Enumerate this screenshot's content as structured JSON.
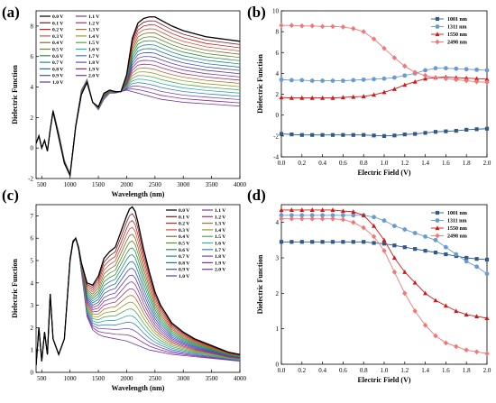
{
  "chart_data": [
    {
      "id": "a",
      "panel_label": "(a)",
      "type": "line",
      "xlabel": "Wavelength (nm)",
      "ylabel": "Dielectric Function",
      "xlim": [
        400,
        4000
      ],
      "ylim": [
        -2,
        9
      ],
      "xticks": [
        500,
        1000,
        1500,
        2000,
        2500,
        3000,
        3500,
        4000
      ],
      "yticks": [
        -2,
        0,
        2,
        4,
        6,
        8
      ],
      "legend": {
        "columns": [
          [
            "0.0 V",
            "0.1 V",
            "0.2 V",
            "0.3 V",
            "0.4 V",
            "0.5 V",
            "0.6 V",
            "0.7 V",
            "0.8 V",
            "0.9 V",
            "1.0 V"
          ],
          [
            "1.1 V",
            "1.2 V",
            "1.3 V",
            "1.4 V",
            "1.5 V",
            "1.6 V",
            "1.7 V",
            "1.8 V",
            "1.9 V",
            "2.0 V"
          ]
        ],
        "placement": "top-left"
      },
      "x": [
        400,
        450,
        500,
        550,
        600,
        650,
        700,
        800,
        900,
        1000,
        1100,
        1200,
        1300,
        1400,
        1500,
        1600,
        1700,
        1800,
        1900,
        2000,
        2100,
        2200,
        2300,
        2400,
        2500,
        2600,
        2700,
        2800,
        3000,
        3200,
        3400,
        3600,
        3800,
        4000
      ],
      "base": [
        0.3,
        0.8,
        0.0,
        0.5,
        -0.2,
        1.2,
        2.5,
        1.0,
        -0.8,
        -1.7,
        1.5,
        3.8,
        4.5,
        3.0,
        2.5,
        3.2,
        3.6,
        3.6,
        3.7,
        3.8,
        3.7,
        3.6,
        3.5,
        3.4,
        3.3,
        3.2,
        3.15,
        3.1,
        3.0,
        2.95,
        2.9,
        2.85,
        2.8,
        2.75
      ],
      "top": [
        0.3,
        0.8,
        0.0,
        0.5,
        -0.2,
        1.2,
        2.4,
        0.7,
        -1.0,
        -1.8,
        1.4,
        3.5,
        4.3,
        3.0,
        2.7,
        3.6,
        3.8,
        3.7,
        3.7,
        4.8,
        7.2,
        8.2,
        8.5,
        8.6,
        8.6,
        8.4,
        8.2,
        8.0,
        7.7,
        7.5,
        7.3,
        7.2,
        7.1,
        7.0
      ],
      "series_colors": [
        "#000000",
        "#7b1a1a",
        "#c81e1e",
        "#d4513a",
        "#7d6b2e",
        "#5c8a2a",
        "#2f8f3d",
        "#1f8f7a",
        "#1f6fa0",
        "#3a4fb0",
        "#5a3aa8",
        "#7c3aa0",
        "#a0336b",
        "#b46a2e",
        "#9a9a2a",
        "#4da84d",
        "#2ab0a0",
        "#3a80c0",
        "#6a4ac0",
        "#8a2a8a",
        "#6a3aa8"
      ]
    },
    {
      "id": "b",
      "panel_label": "(b)",
      "type": "line",
      "xlabel": "Electric Field (V)",
      "ylabel": "Dielectric Function",
      "xlim": [
        0,
        2.0
      ],
      "ylim": [
        -4,
        10
      ],
      "xticks": [
        0.0,
        0.2,
        0.4,
        0.6,
        0.8,
        1.0,
        1.2,
        1.4,
        1.6,
        1.8,
        2.0
      ],
      "yticks": [
        -4,
        -2,
        0,
        2,
        4,
        6,
        8,
        10
      ],
      "legend_placement": "top-right",
      "x": [
        0.0,
        0.1,
        0.2,
        0.3,
        0.4,
        0.5,
        0.6,
        0.7,
        0.8,
        0.9,
        1.0,
        1.1,
        1.2,
        1.3,
        1.4,
        1.5,
        1.6,
        1.7,
        1.8,
        1.9,
        2.0
      ],
      "series": [
        {
          "name": "1001 nm",
          "color": "#2f5a8a",
          "marker": "square",
          "values": [
            -1.8,
            -1.85,
            -1.9,
            -1.9,
            -1.9,
            -1.9,
            -1.9,
            -1.9,
            -1.9,
            -1.95,
            -2.0,
            -1.95,
            -1.85,
            -1.8,
            -1.7,
            -1.6,
            -1.55,
            -1.5,
            -1.4,
            -1.35,
            -1.3
          ]
        },
        {
          "name": "1311 nm",
          "color": "#6a9bd0",
          "marker": "circle",
          "values": [
            3.4,
            3.35,
            3.35,
            3.3,
            3.3,
            3.3,
            3.3,
            3.35,
            3.4,
            3.45,
            3.5,
            3.6,
            3.8,
            4.0,
            4.3,
            4.5,
            4.5,
            4.45,
            4.4,
            4.35,
            4.3
          ]
        },
        {
          "name": "1550 nm",
          "color": "#d01818",
          "marker": "triangle",
          "values": [
            1.7,
            1.65,
            1.65,
            1.65,
            1.65,
            1.65,
            1.7,
            1.75,
            1.8,
            1.95,
            2.2,
            2.5,
            2.9,
            3.2,
            3.5,
            3.6,
            3.65,
            3.6,
            3.55,
            3.5,
            3.45
          ]
        },
        {
          "name": "2498 nm",
          "color": "#f27777",
          "marker": "diamond",
          "values": [
            8.6,
            8.6,
            8.55,
            8.55,
            8.5,
            8.5,
            8.45,
            8.3,
            8.0,
            7.3,
            6.4,
            5.5,
            4.7,
            4.1,
            3.8,
            3.6,
            3.5,
            3.4,
            3.3,
            3.2,
            3.15
          ]
        }
      ]
    },
    {
      "id": "c",
      "panel_label": "(c)",
      "type": "line",
      "xlabel": "Wavelength (nm)",
      "ylabel": "Dielectric Function",
      "xlim": [
        400,
        4000
      ],
      "ylim": [
        0,
        7.5
      ],
      "xticks": [
        500,
        1000,
        1500,
        2000,
        2500,
        3000,
        3500,
        4000
      ],
      "yticks": [
        0,
        1,
        2,
        3,
        4,
        5,
        6,
        7
      ],
      "legend": {
        "columns": [
          [
            "0.0 V",
            "0.1 V",
            "0.2 V",
            "0.3 V",
            "0.4 V",
            "0.5 V",
            "0.6 V",
            "0.7 V",
            "0.8 V",
            "0.9 V",
            "1.0 V"
          ],
          [
            "1.1 V",
            "1.2 V",
            "1.3 V",
            "1.4 V",
            "1.5 V",
            "1.6 V",
            "1.7 V",
            "1.8 V",
            "1.9 V",
            "2.0 V"
          ]
        ],
        "placement": "top-right"
      },
      "x": [
        400,
        450,
        500,
        550,
        600,
        650,
        700,
        800,
        900,
        1000,
        1050,
        1100,
        1150,
        1200,
        1300,
        1400,
        1500,
        1600,
        1700,
        1800,
        1900,
        2000,
        2050,
        2100,
        2150,
        2200,
        2300,
        2400,
        2500,
        2600,
        2800,
        3000,
        3200,
        3400,
        3600,
        3800,
        4000
      ],
      "base": [
        0.3,
        2.0,
        0.5,
        1.8,
        0.8,
        3.5,
        1.5,
        0.8,
        1.5,
        5.1,
        5.9,
        6.0,
        5.5,
        4.5,
        2.5,
        1.9,
        1.7,
        1.6,
        1.55,
        1.5,
        1.45,
        1.4,
        1.35,
        1.3,
        1.25,
        1.2,
        1.1,
        1.0,
        0.95,
        0.9,
        0.8,
        0.75,
        0.7,
        0.65,
        0.6,
        0.55,
        0.5
      ],
      "top": [
        0.3,
        2.0,
        0.5,
        1.8,
        0.8,
        3.5,
        1.5,
        0.8,
        1.5,
        5.0,
        5.8,
        6.0,
        5.6,
        4.9,
        4.0,
        3.9,
        4.3,
        5.1,
        5.4,
        5.6,
        6.3,
        7.0,
        7.3,
        7.4,
        7.2,
        6.7,
        5.5,
        4.5,
        3.6,
        3.0,
        2.2,
        1.8,
        1.5,
        1.3,
        1.1,
        0.9,
        0.8
      ],
      "series_colors": [
        "#000000",
        "#7b1a1a",
        "#c81e1e",
        "#d4513a",
        "#7d6b2e",
        "#5c8a2a",
        "#2f8f3d",
        "#1f8f7a",
        "#1f6fa0",
        "#3a4fb0",
        "#5a3aa8",
        "#7c3aa0",
        "#a0336b",
        "#b46a2e",
        "#9a9a2a",
        "#4da84d",
        "#2ab0a0",
        "#3a80c0",
        "#6a4ac0",
        "#8a2a8a",
        "#6a3aa8"
      ]
    },
    {
      "id": "d",
      "panel_label": "(d)",
      "type": "line",
      "xlabel": "Electric Field (V)",
      "ylabel": "Dielectric Function",
      "xlim": [
        0,
        2.0
      ],
      "ylim": [
        0,
        4.5
      ],
      "xticks": [
        0.0,
        0.2,
        0.4,
        0.6,
        0.8,
        1.0,
        1.2,
        1.4,
        1.6,
        1.8,
        2.0
      ],
      "yticks": [
        0,
        1,
        2,
        3,
        4
      ],
      "legend_placement": "top-right",
      "x": [
        0.0,
        0.1,
        0.2,
        0.3,
        0.4,
        0.5,
        0.6,
        0.7,
        0.8,
        0.9,
        1.0,
        1.1,
        1.2,
        1.3,
        1.4,
        1.5,
        1.6,
        1.7,
        1.8,
        1.9,
        2.0
      ],
      "series": [
        {
          "name": "1001 nm",
          "color": "#2f5a8a",
          "marker": "square",
          "values": [
            3.45,
            3.45,
            3.45,
            3.45,
            3.45,
            3.45,
            3.45,
            3.45,
            3.45,
            3.42,
            3.4,
            3.35,
            3.3,
            3.25,
            3.2,
            3.15,
            3.1,
            3.05,
            3.0,
            2.97,
            2.95
          ]
        },
        {
          "name": "1311 nm",
          "color": "#6a9bd0",
          "marker": "circle",
          "values": [
            4.2,
            4.2,
            4.2,
            4.2,
            4.2,
            4.2,
            4.2,
            4.2,
            4.2,
            4.15,
            4.05,
            3.9,
            3.8,
            3.7,
            3.6,
            3.5,
            3.3,
            3.1,
            2.9,
            2.75,
            2.55
          ]
        },
        {
          "name": "1550 nm",
          "color": "#d01818",
          "marker": "triangle",
          "values": [
            4.35,
            4.35,
            4.35,
            4.35,
            4.35,
            4.35,
            4.32,
            4.3,
            4.2,
            3.9,
            3.5,
            3.0,
            2.6,
            2.3,
            2.0,
            1.8,
            1.65,
            1.5,
            1.4,
            1.35,
            1.3
          ]
        },
        {
          "name": "2498 nm",
          "color": "#f27777",
          "marker": "diamond",
          "values": [
            4.1,
            4.1,
            4.1,
            4.1,
            4.1,
            4.1,
            4.08,
            4.0,
            3.85,
            3.6,
            3.2,
            2.6,
            2.0,
            1.5,
            1.1,
            0.8,
            0.6,
            0.5,
            0.4,
            0.35,
            0.3
          ]
        }
      ]
    }
  ]
}
